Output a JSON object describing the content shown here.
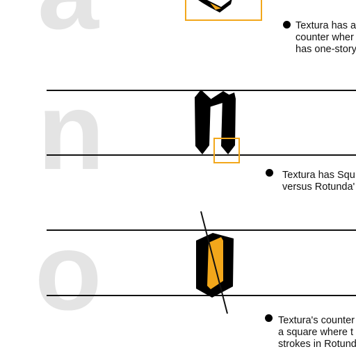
{
  "colors": {
    "background": "#ffffff",
    "ghost_letter": "#e4e4e4",
    "rule": "#111111",
    "highlight": "#f2a71b",
    "glyph": "#000000"
  },
  "rows": [
    {
      "letter": "a",
      "note_lines": [
        "Textura has a",
        "counter wher",
        "has one-story"
      ]
    },
    {
      "letter": "n",
      "note_lines": [
        "Textura has Squ",
        "versus Rotunda'"
      ]
    },
    {
      "letter": "o",
      "note_lines": [
        "Textura's counter",
        "a square where t",
        "strokes in Rotund"
      ]
    }
  ]
}
